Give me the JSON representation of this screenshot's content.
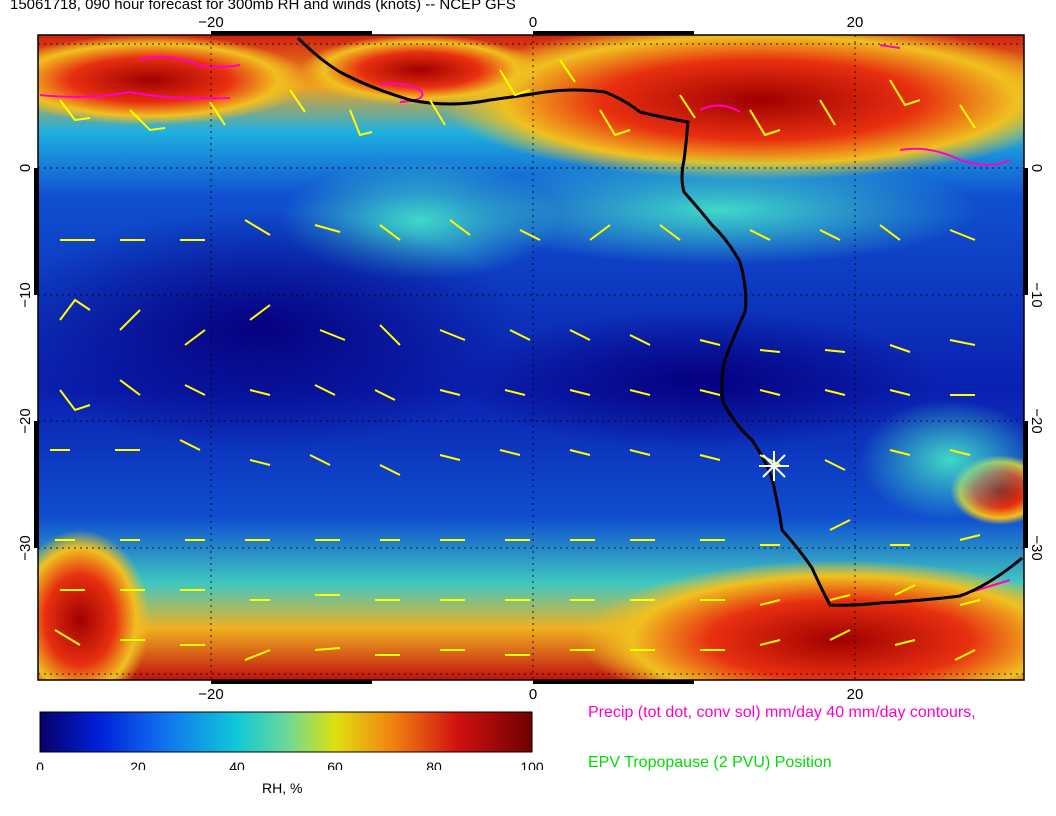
{
  "title": "15061718, 090 hour forecast for 300mb RH and winds (knots) -- NCEP GFS",
  "map": {
    "lon_range": [
      -30,
      30
    ],
    "lat_range": [
      -40,
      10
    ],
    "top_lon_labels": [
      "−20",
      "0",
      "20"
    ],
    "bottom_lon_labels": [
      "−20",
      "0",
      "20"
    ],
    "left_lat_labels": [
      "0",
      "−10",
      "−20",
      "−30"
    ],
    "right_lat_labels": [
      "0",
      "−10",
      "−20",
      "−30"
    ],
    "gridlines": "dotted",
    "marker": {
      "symbol": "asterisk",
      "lon": 15,
      "lat": -23
    }
  },
  "colorbar": {
    "ticks": [
      "0",
      "20",
      "40",
      "60",
      "80",
      "100"
    ],
    "label": "RH, %",
    "colors": [
      "#08006a",
      "#0020d8",
      "#1070f0",
      "#10c8d8",
      "#6ad89a",
      "#e0e010",
      "#f08010",
      "#d01010",
      "#700000"
    ]
  },
  "legends": {
    "precip": "Precip (tot dot, conv sol) mm/day 40 mm/day contours,",
    "epv": "EPV Tropopause (2 PVU) Position"
  }
}
